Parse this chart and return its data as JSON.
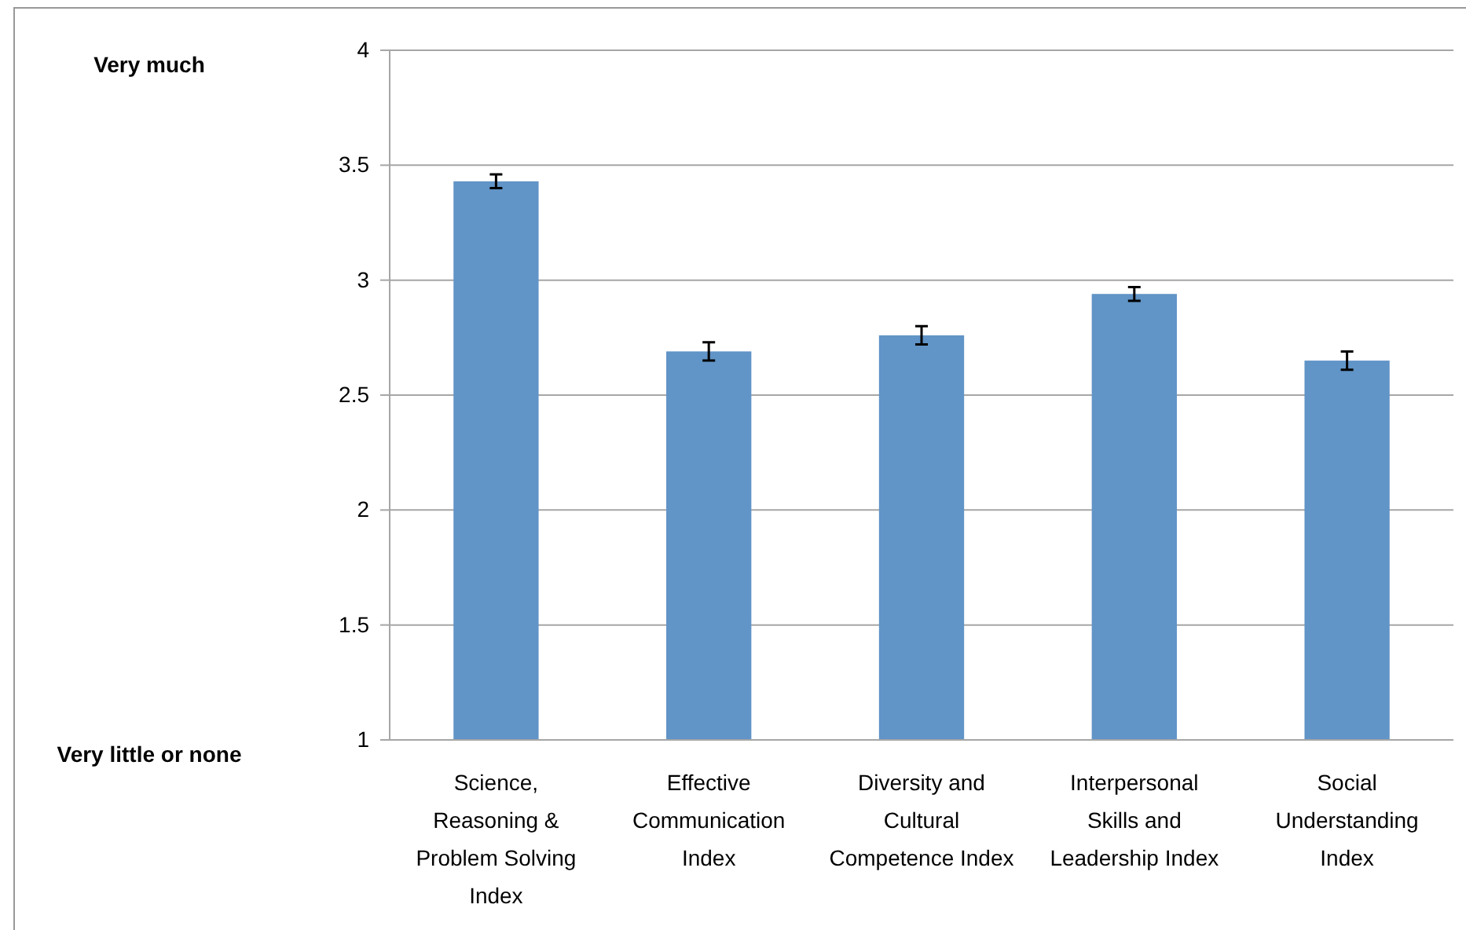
{
  "chart_data": {
    "type": "bar",
    "categories": [
      "Science, Reasoning & Problem Solving Index",
      "Effective Communication Index",
      "Diversity and Cultural Competence Index",
      "Interpersonal Skills and Leadership Index",
      "Social Understanding Index"
    ],
    "values": [
      3.43,
      2.69,
      2.76,
      2.94,
      2.65
    ],
    "errors": [
      0.03,
      0.04,
      0.04,
      0.03,
      0.04
    ],
    "color": "#6194c7",
    "ylim": [
      1,
      4
    ],
    "yticks": [
      1,
      1.5,
      2,
      2.5,
      3,
      3.5,
      4
    ],
    "grid": "y",
    "annotations": [
      "Very much",
      "Very little or none"
    ]
  }
}
